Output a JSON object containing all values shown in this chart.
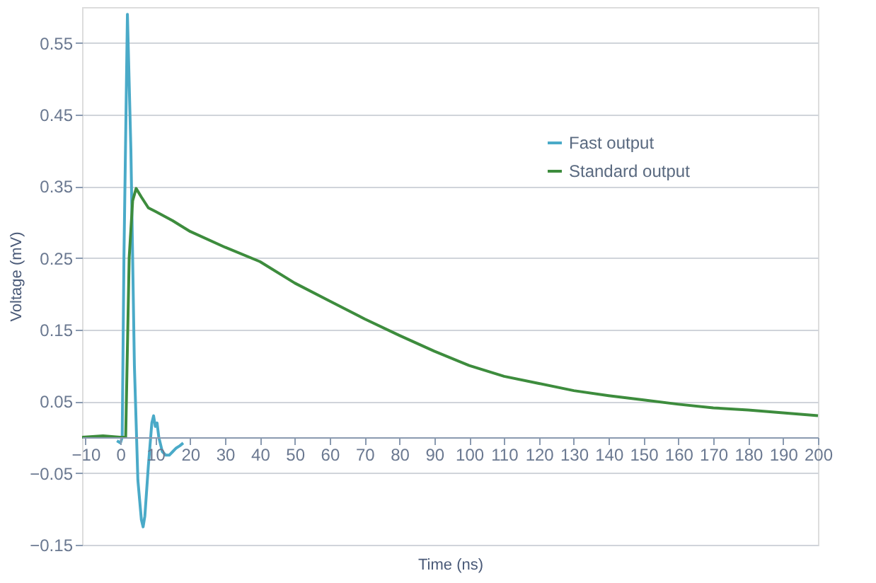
{
  "chart_data": {
    "type": "line",
    "xlabel": "Time (ns)",
    "ylabel": "Voltage (mV)",
    "xlim": [
      -11,
      200
    ],
    "ylim": [
      -0.15,
      0.6
    ],
    "xticks": [
      -10,
      0,
      10,
      20,
      30,
      40,
      50,
      60,
      70,
      80,
      90,
      100,
      110,
      120,
      130,
      140,
      150,
      160,
      170,
      180,
      190,
      200
    ],
    "yticks": [
      -0.15,
      -0.05,
      0.05,
      0.15,
      0.25,
      0.35,
      0.45,
      0.55
    ],
    "grid": "y",
    "legend": "top right",
    "line_style": "solid",
    "marker": "none",
    "series": [
      {
        "name": "Fast output",
        "color": "#4aaac8",
        "x": [
          -1,
          0,
          0.5,
          1,
          2,
          3,
          4,
          5,
          6,
          6.5,
          7,
          8,
          9,
          9.5,
          10,
          10.5,
          11,
          12,
          13,
          14,
          15,
          16,
          17,
          18
        ],
        "values": [
          -0.005,
          -0.008,
          0.0,
          0.25,
          0.59,
          0.4,
          0.1,
          -0.06,
          -0.115,
          -0.125,
          -0.11,
          -0.04,
          0.02,
          0.03,
          0.015,
          0.02,
          0.0,
          -0.02,
          -0.025,
          -0.025,
          -0.02,
          -0.015,
          -0.012,
          -0.008
        ]
      },
      {
        "name": "Standard output",
        "color": "#3d8c3d",
        "x": [
          -11,
          -5,
          0,
          1.5,
          2.5,
          3.5,
          4.5,
          6,
          8,
          10,
          15,
          20,
          30,
          40,
          50,
          60,
          70,
          80,
          90,
          100,
          110,
          120,
          130,
          140,
          150,
          160,
          170,
          180,
          190,
          200
        ],
        "values": [
          0.0,
          0.002,
          0.0,
          0.0,
          0.25,
          0.33,
          0.347,
          0.335,
          0.32,
          0.315,
          0.302,
          0.287,
          0.265,
          0.245,
          0.215,
          0.19,
          0.165,
          0.142,
          0.12,
          0.1,
          0.085,
          0.075,
          0.065,
          0.058,
          0.052,
          0.046,
          0.041,
          0.038,
          0.034,
          0.03
        ]
      }
    ]
  }
}
